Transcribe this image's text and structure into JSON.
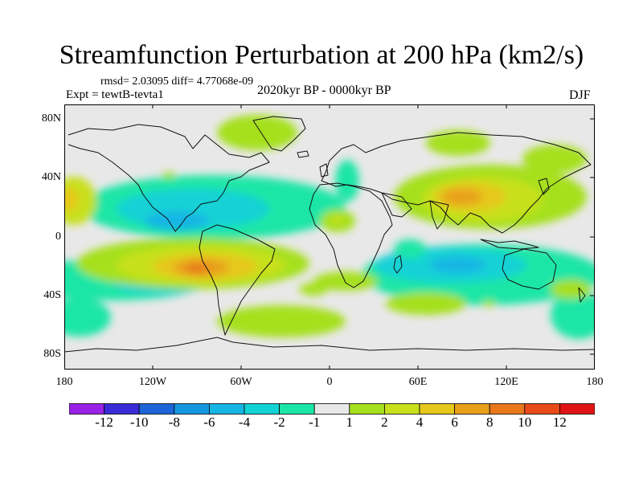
{
  "header": {
    "title": "Streamfunction Perturbation at 200 hPa (km2/s)",
    "stats": "rmsd= 2.03095 diff= 4.77068e-09",
    "experiment": "Expt = tewtB-tevta1",
    "period": "2020kyr BP - 0000kyr BP",
    "season": "DJF"
  },
  "axes": {
    "lat_labels": [
      "80N",
      "40N",
      "0",
      "40S",
      "80S"
    ],
    "lon_labels": [
      "180",
      "120W",
      "60W",
      "0",
      "60E",
      "120E",
      "180"
    ]
  },
  "colorbar": {
    "labels": [
      "-12",
      "-10",
      "-8",
      "-6",
      "-4",
      "-2",
      "-1",
      "1",
      "2",
      "4",
      "6",
      "8",
      "10",
      "12"
    ],
    "colors": [
      "#9a22e6",
      "#3a2ad8",
      "#1c64d8",
      "#1496e0",
      "#16b6e4",
      "#12d2d6",
      "#1ce6a6",
      "#e8e8e8",
      "#a6e01e",
      "#c8e01c",
      "#e6c81a",
      "#e8a01a",
      "#e8781a",
      "#e84a18",
      "#e01414"
    ]
  }
}
